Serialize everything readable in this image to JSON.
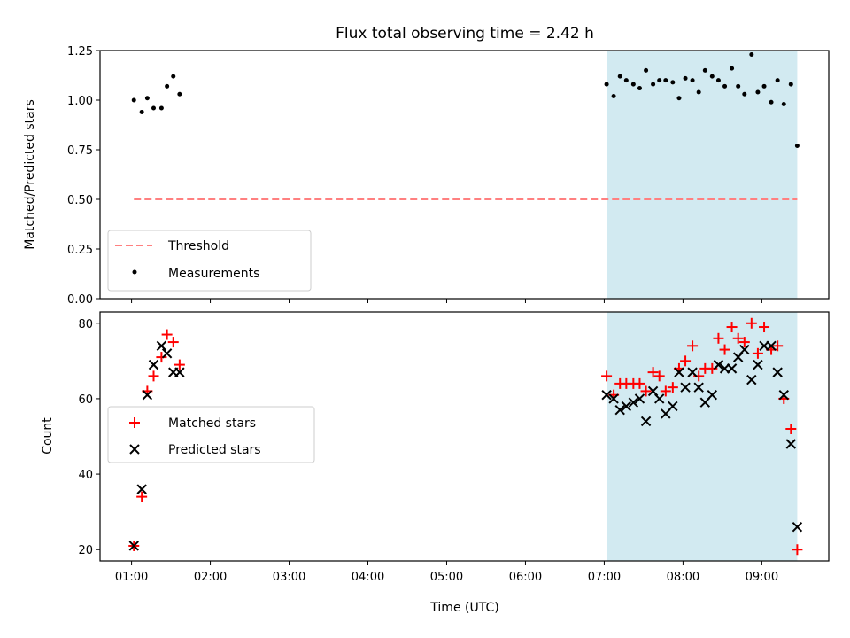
{
  "chart_data": {
    "title": "Flux total observing time = 2.42 h",
    "xlabel": "Time (UTC)",
    "x_ticks": [
      "01:00",
      "02:00",
      "03:00",
      "04:00",
      "05:00",
      "06:00",
      "07:00",
      "08:00",
      "09:00"
    ],
    "x_range_hours": [
      0.6,
      9.85
    ],
    "shaded_region_hours": [
      7.03,
      9.45
    ],
    "shade_color": "#add8e6",
    "panels": [
      {
        "type": "scatter",
        "ylabel": "Matched/Predicted stars",
        "ylim": [
          0,
          1.25
        ],
        "y_ticks": [
          "0.00",
          "0.25",
          "0.50",
          "0.75",
          "1.00",
          "1.25"
        ],
        "legend_position": "lower-left",
        "series": [
          {
            "name": "Threshold",
            "kind": "dashed-line",
            "color": "#ff8080",
            "x": [
              1.03,
              9.45
            ],
            "y": [
              0.5,
              0.5
            ]
          },
          {
            "name": "Measurements",
            "kind": "dot",
            "color": "#000000",
            "x": [
              1.03,
              1.13,
              1.2,
              1.28,
              1.38,
              1.45,
              1.53,
              1.61,
              7.03,
              7.12,
              7.2,
              7.28,
              7.37,
              7.45,
              7.53,
              7.62,
              7.7,
              7.78,
              7.87,
              7.95,
              8.03,
              8.12,
              8.2,
              8.28,
              8.37,
              8.45,
              8.53,
              8.62,
              8.7,
              8.78,
              8.87,
              8.95,
              9.03,
              9.12,
              9.2,
              9.28,
              9.37,
              9.45
            ],
            "y": [
              1.0,
              0.94,
              1.01,
              0.96,
              0.96,
              1.07,
              1.12,
              1.03,
              1.08,
              1.02,
              1.12,
              1.1,
              1.08,
              1.06,
              1.15,
              1.08,
              1.1,
              1.1,
              1.09,
              1.01,
              1.11,
              1.1,
              1.04,
              1.15,
              1.12,
              1.1,
              1.07,
              1.16,
              1.07,
              1.03,
              1.23,
              1.04,
              1.07,
              0.99,
              1.1,
              0.98,
              1.08,
              0.77
            ]
          }
        ]
      },
      {
        "type": "scatter",
        "ylabel": "Count",
        "ylim": [
          17,
          83
        ],
        "y_ticks": [
          "20",
          "40",
          "60",
          "80"
        ],
        "legend_position": "center-left",
        "series": [
          {
            "name": "Matched stars",
            "kind": "plus",
            "color": "#ff0000",
            "x": [
              1.03,
              1.13,
              1.2,
              1.28,
              1.38,
              1.45,
              1.53,
              1.61,
              7.03,
              7.12,
              7.2,
              7.28,
              7.37,
              7.45,
              7.53,
              7.62,
              7.7,
              7.78,
              7.87,
              7.95,
              8.03,
              8.12,
              8.2,
              8.28,
              8.37,
              8.45,
              8.53,
              8.62,
              8.7,
              8.78,
              8.87,
              8.95,
              9.03,
              9.12,
              9.2,
              9.28,
              9.37,
              9.45
            ],
            "y": [
              21,
              34,
              62,
              66,
              71,
              77,
              75,
              69,
              66,
              61,
              64,
              64,
              64,
              64,
              62,
              67,
              66,
              62,
              63,
              68,
              70,
              74,
              66,
              68,
              68,
              76,
              73,
              79,
              76,
              75,
              80,
              72,
              79,
              73,
              74,
              60,
              52,
              20
            ]
          },
          {
            "name": "Predicted stars",
            "kind": "cross",
            "color": "#000000",
            "x": [
              1.03,
              1.13,
              1.2,
              1.28,
              1.38,
              1.45,
              1.53,
              1.61,
              7.03,
              7.12,
              7.2,
              7.28,
              7.37,
              7.45,
              7.53,
              7.62,
              7.7,
              7.78,
              7.87,
              7.95,
              8.03,
              8.12,
              8.2,
              8.28,
              8.37,
              8.45,
              8.53,
              8.62,
              8.7,
              8.78,
              8.87,
              8.95,
              9.03,
              9.12,
              9.2,
              9.28,
              9.37,
              9.45
            ],
            "y": [
              21,
              36,
              61,
              69,
              74,
              72,
              67,
              67,
              61,
              60,
              57,
              58,
              59,
              60,
              54,
              62,
              60,
              56,
              58,
              67,
              63,
              67,
              63,
              59,
              61,
              69,
              68,
              68,
              71,
              73,
              65,
              69,
              74,
              74,
              67,
              61,
              48,
              26
            ]
          }
        ]
      }
    ]
  }
}
